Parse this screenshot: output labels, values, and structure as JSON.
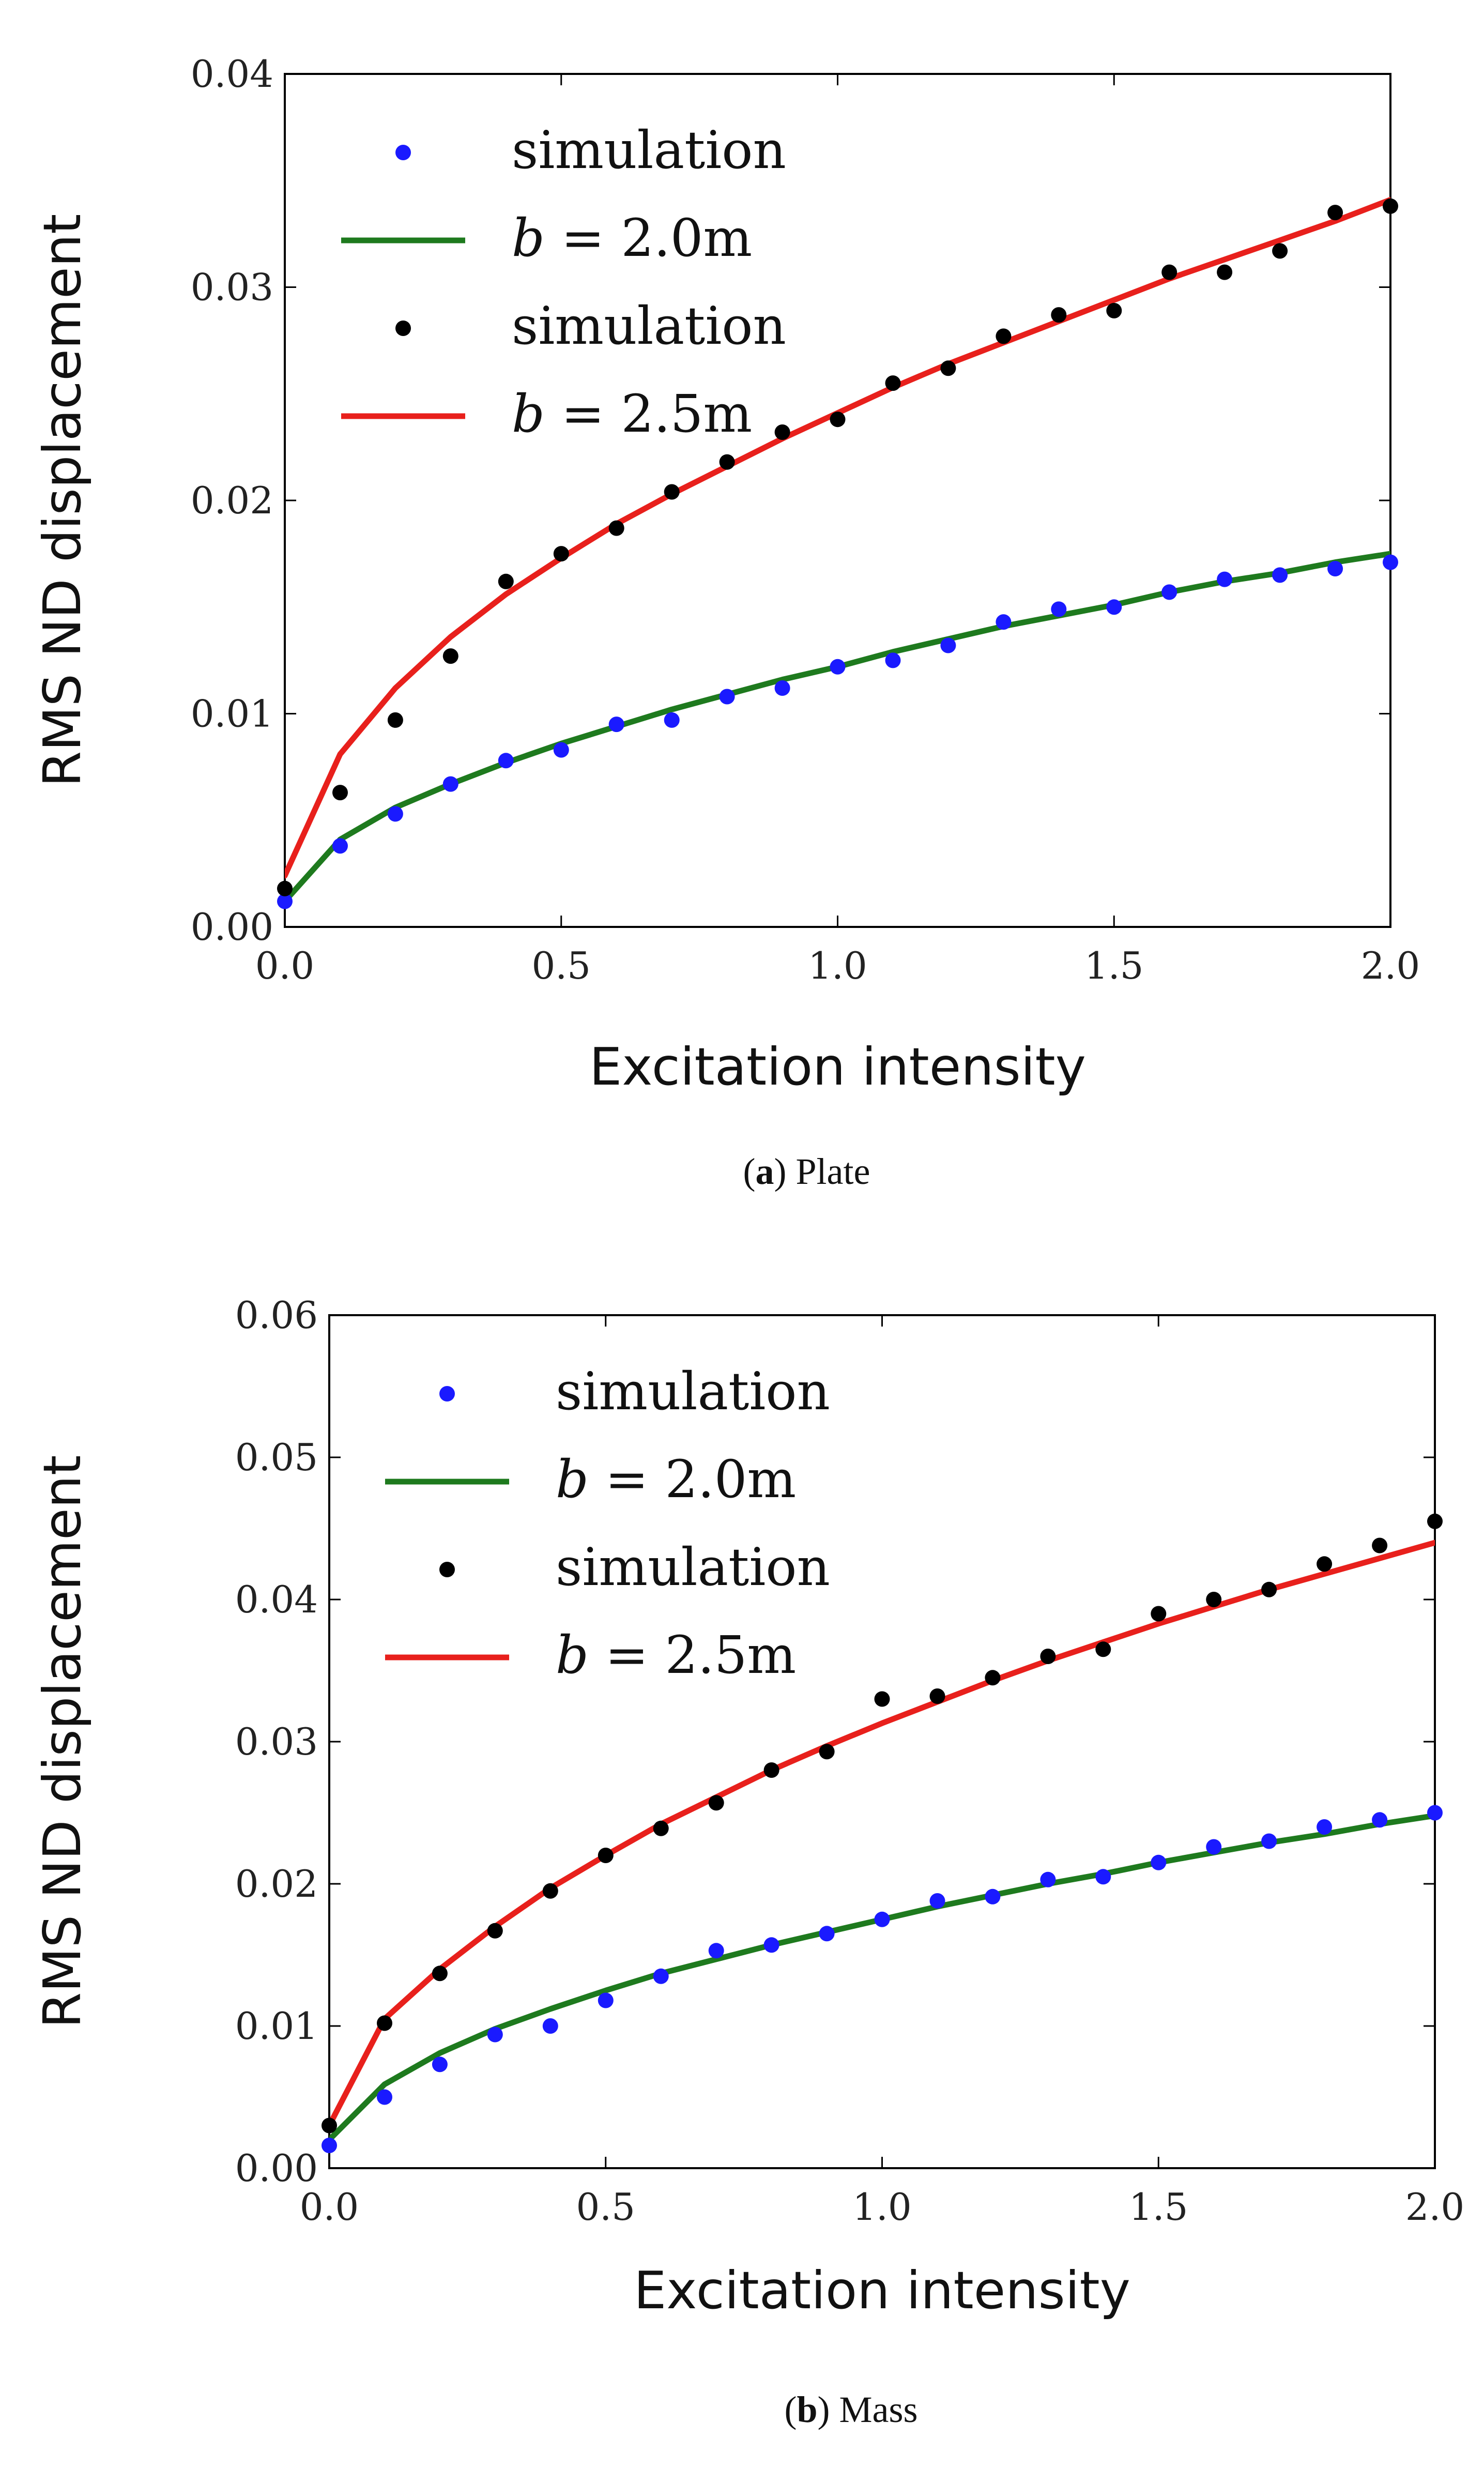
{
  "chart_data": [
    {
      "type": "line+scatter",
      "panel": "a",
      "caption_letter": "a",
      "caption_text": "Plate",
      "xlabel": "Excitation intensity",
      "ylabel": "RMS ND displacement",
      "xlim": [
        0,
        2.0
      ],
      "ylim": [
        0,
        0.04
      ],
      "xticks": [
        0.0,
        0.5,
        1.0,
        1.5,
        2.0
      ],
      "xtick_labels": [
        "0.0",
        "0.5",
        "1.0",
        "1.5",
        "2.0"
      ],
      "yticks": [
        0.0,
        0.01,
        0.02,
        0.03,
        0.04
      ],
      "ytick_labels": [
        "0.00",
        "0.01",
        "0.02",
        "0.03",
        "0.04"
      ],
      "legend_position": "top-left",
      "series": [
        {
          "name": "simulation",
          "kind": "scatter",
          "color": "#1a1aff",
          "x": [
            0.0,
            0.1,
            0.2,
            0.3,
            0.4,
            0.5,
            0.6,
            0.7,
            0.8,
            0.9,
            1.0,
            1.1,
            1.2,
            1.3,
            1.4,
            1.5,
            1.6,
            1.7,
            1.8,
            1.9,
            2.0
          ],
          "y": [
            0.0012,
            0.0038,
            0.0053,
            0.0067,
            0.0078,
            0.0083,
            0.0095,
            0.0097,
            0.0108,
            0.0112,
            0.0122,
            0.0125,
            0.0132,
            0.0143,
            0.0149,
            0.015,
            0.0157,
            0.0163,
            0.0165,
            0.0168,
            0.0171
          ]
        },
        {
          "name": "b = 2.0m",
          "legend_var": "b",
          "legend_rest": " = 2.0m",
          "kind": "line",
          "color": "#1e7a1e",
          "x": [
            0.0,
            0.1,
            0.2,
            0.3,
            0.4,
            0.5,
            0.6,
            0.7,
            0.8,
            0.9,
            1.0,
            1.1,
            1.2,
            1.3,
            1.4,
            1.5,
            1.6,
            1.7,
            1.8,
            1.9,
            2.0
          ],
          "y": [
            0.0012,
            0.0041,
            0.0056,
            0.0067,
            0.0077,
            0.0086,
            0.0094,
            0.0102,
            0.0109,
            0.0116,
            0.0122,
            0.0129,
            0.0135,
            0.0141,
            0.0146,
            0.0151,
            0.0157,
            0.0162,
            0.0166,
            0.0171,
            0.0175
          ]
        },
        {
          "name": "simulation",
          "kind": "scatter",
          "color": "#000000",
          "x": [
            0.0,
            0.1,
            0.2,
            0.3,
            0.4,
            0.5,
            0.6,
            0.7,
            0.8,
            0.9,
            1.0,
            1.1,
            1.2,
            1.3,
            1.4,
            1.5,
            1.6,
            1.7,
            1.8,
            1.9,
            2.0
          ],
          "y": [
            0.0018,
            0.0063,
            0.0097,
            0.0127,
            0.0162,
            0.0175,
            0.0187,
            0.0204,
            0.0218,
            0.0232,
            0.0238,
            0.0255,
            0.0262,
            0.0277,
            0.0287,
            0.0289,
            0.0307,
            0.0307,
            0.0317,
            0.0335,
            0.0338
          ]
        },
        {
          "name": "b = 2.5m",
          "legend_var": "b",
          "legend_rest": " = 2.5m",
          "kind": "line",
          "color": "#e8201c",
          "x": [
            0.0,
            0.1,
            0.2,
            0.3,
            0.4,
            0.5,
            0.6,
            0.7,
            0.8,
            0.9,
            1.0,
            1.1,
            1.2,
            1.3,
            1.4,
            1.5,
            1.6,
            1.7,
            1.8,
            1.9,
            2.0
          ],
          "y": [
            0.0024,
            0.0081,
            0.0112,
            0.0136,
            0.0156,
            0.0173,
            0.0189,
            0.0203,
            0.0216,
            0.0229,
            0.0241,
            0.0253,
            0.0264,
            0.0274,
            0.0284,
            0.0294,
            0.0304,
            0.0313,
            0.0322,
            0.0331,
            0.0341
          ]
        }
      ]
    },
    {
      "type": "line+scatter",
      "panel": "b",
      "caption_letter": "b",
      "caption_text": "Mass",
      "xlabel": "Excitation intensity",
      "ylabel": "RMS ND displacement",
      "xlim": [
        0,
        2.0
      ],
      "ylim": [
        0,
        0.06
      ],
      "xticks": [
        0.0,
        0.5,
        1.0,
        1.5,
        2.0
      ],
      "xtick_labels": [
        "0.0",
        "0.5",
        "1.0",
        "1.5",
        "2.0"
      ],
      "yticks": [
        0.0,
        0.01,
        0.02,
        0.03,
        0.04,
        0.05,
        0.06
      ],
      "ytick_labels": [
        "0.00",
        "0.01",
        "0.02",
        "0.03",
        "0.04",
        "0.05",
        "0.06"
      ],
      "legend_position": "top-left",
      "series": [
        {
          "name": "simulation",
          "kind": "scatter",
          "color": "#1a1aff",
          "x": [
            0.0,
            0.1,
            0.2,
            0.3,
            0.4,
            0.5,
            0.6,
            0.7,
            0.8,
            0.9,
            1.0,
            1.1,
            1.2,
            1.3,
            1.4,
            1.5,
            1.6,
            1.7,
            1.8,
            1.9,
            2.0
          ],
          "y": [
            0.0016,
            0.005,
            0.0073,
            0.0094,
            0.01,
            0.0118,
            0.0135,
            0.0153,
            0.0157,
            0.0165,
            0.0175,
            0.0188,
            0.0191,
            0.0203,
            0.0205,
            0.0215,
            0.0226,
            0.023,
            0.024,
            0.0245,
            0.025
          ]
        },
        {
          "name": "b = 2.0m",
          "legend_var": "b",
          "legend_rest": " = 2.0m",
          "kind": "line",
          "color": "#1e7a1e",
          "x": [
            0.0,
            0.1,
            0.2,
            0.3,
            0.4,
            0.5,
            0.6,
            0.7,
            0.8,
            0.9,
            1.0,
            1.1,
            1.2,
            1.3,
            1.4,
            1.5,
            1.6,
            1.7,
            1.8,
            1.9,
            2.0
          ],
          "y": [
            0.002,
            0.0059,
            0.0081,
            0.0098,
            0.0112,
            0.0125,
            0.0137,
            0.0147,
            0.0157,
            0.0166,
            0.0175,
            0.0184,
            0.0192,
            0.02,
            0.0207,
            0.0215,
            0.0222,
            0.0229,
            0.0235,
            0.0242,
            0.0248
          ]
        },
        {
          "name": "simulation",
          "kind": "scatter",
          "color": "#000000",
          "x": [
            0.0,
            0.1,
            0.2,
            0.3,
            0.4,
            0.5,
            0.6,
            0.7,
            0.8,
            0.9,
            1.0,
            1.1,
            1.2,
            1.3,
            1.4,
            1.5,
            1.6,
            1.7,
            1.8,
            1.9,
            2.0
          ],
          "y": [
            0.003,
            0.0102,
            0.0137,
            0.0167,
            0.0195,
            0.022,
            0.0239,
            0.0257,
            0.028,
            0.0293,
            0.033,
            0.0332,
            0.0345,
            0.036,
            0.0365,
            0.039,
            0.04,
            0.0407,
            0.0425,
            0.0438,
            0.0455
          ]
        },
        {
          "name": "b = 2.5m",
          "legend_var": "b",
          "legend_rest": " = 2.5m",
          "kind": "line",
          "color": "#e8201c",
          "x": [
            0.0,
            0.1,
            0.2,
            0.3,
            0.4,
            0.5,
            0.6,
            0.7,
            0.8,
            0.9,
            1.0,
            1.1,
            1.2,
            1.3,
            1.4,
            1.5,
            1.6,
            1.7,
            1.8,
            1.9,
            2.0
          ],
          "y": [
            0.003,
            0.0105,
            0.014,
            0.017,
            0.0197,
            0.022,
            0.0242,
            0.0261,
            0.028,
            0.0297,
            0.0313,
            0.0328,
            0.0343,
            0.0357,
            0.037,
            0.0383,
            0.0395,
            0.0407,
            0.0418,
            0.0429,
            0.044
          ]
        }
      ]
    }
  ]
}
